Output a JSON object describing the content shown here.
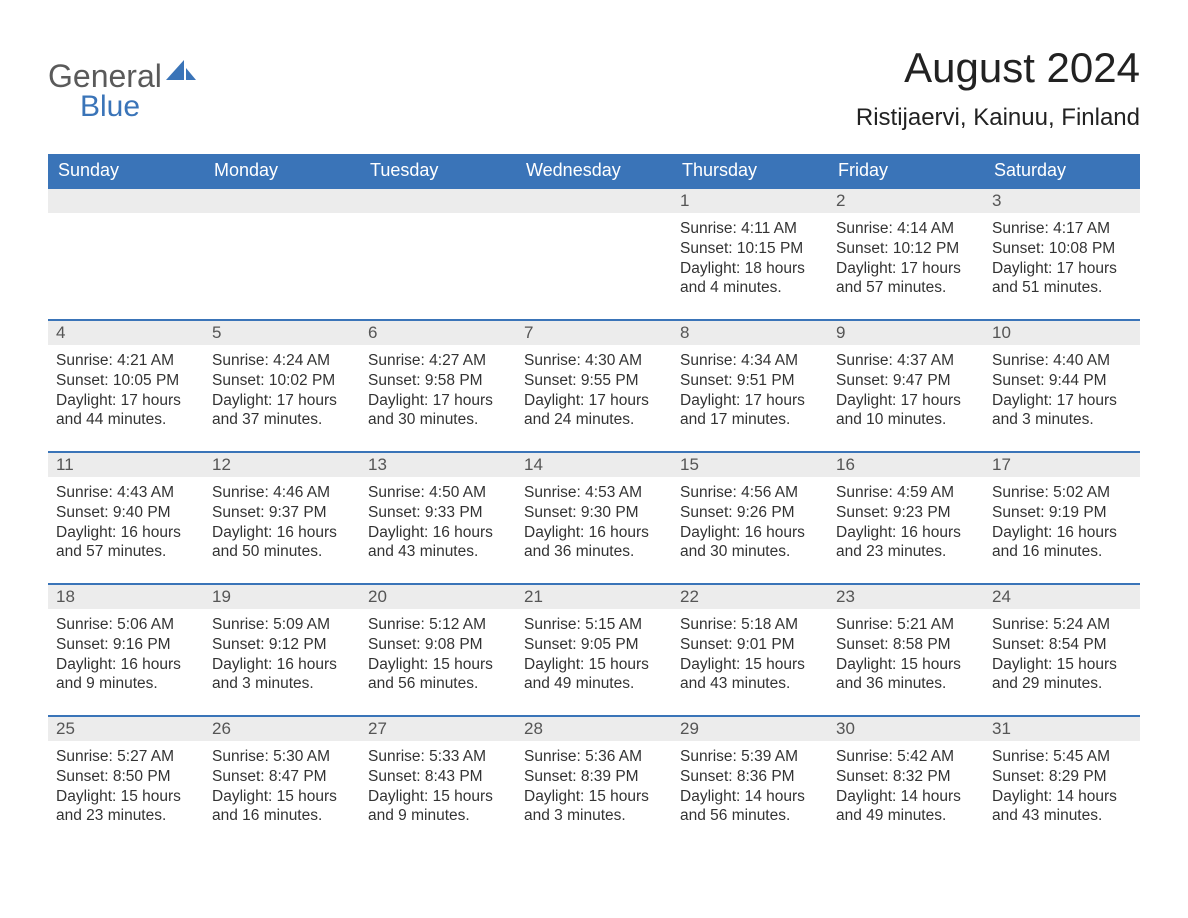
{
  "logo": {
    "word1": "General",
    "word2": "Blue",
    "accent_color": "#3a74b8"
  },
  "title": "August 2024",
  "location": "Ristijaervi, Kainuu, Finland",
  "colors": {
    "header_bg": "#3a74b8",
    "header_text": "#ffffff",
    "daybar_bg": "#ececec",
    "daybar_border": "#3a74b8",
    "body_text": "#333333",
    "page_bg": "#ffffff"
  },
  "day_headers": [
    "Sunday",
    "Monday",
    "Tuesday",
    "Wednesday",
    "Thursday",
    "Friday",
    "Saturday"
  ],
  "weeks": [
    [
      null,
      null,
      null,
      null,
      {
        "n": "1",
        "sunrise": "4:11 AM",
        "sunset": "10:15 PM",
        "daylight": "18 hours and 4 minutes."
      },
      {
        "n": "2",
        "sunrise": "4:14 AM",
        "sunset": "10:12 PM",
        "daylight": "17 hours and 57 minutes."
      },
      {
        "n": "3",
        "sunrise": "4:17 AM",
        "sunset": "10:08 PM",
        "daylight": "17 hours and 51 minutes."
      }
    ],
    [
      {
        "n": "4",
        "sunrise": "4:21 AM",
        "sunset": "10:05 PM",
        "daylight": "17 hours and 44 minutes."
      },
      {
        "n": "5",
        "sunrise": "4:24 AM",
        "sunset": "10:02 PM",
        "daylight": "17 hours and 37 minutes."
      },
      {
        "n": "6",
        "sunrise": "4:27 AM",
        "sunset": "9:58 PM",
        "daylight": "17 hours and 30 minutes."
      },
      {
        "n": "7",
        "sunrise": "4:30 AM",
        "sunset": "9:55 PM",
        "daylight": "17 hours and 24 minutes."
      },
      {
        "n": "8",
        "sunrise": "4:34 AM",
        "sunset": "9:51 PM",
        "daylight": "17 hours and 17 minutes."
      },
      {
        "n": "9",
        "sunrise": "4:37 AM",
        "sunset": "9:47 PM",
        "daylight": "17 hours and 10 minutes."
      },
      {
        "n": "10",
        "sunrise": "4:40 AM",
        "sunset": "9:44 PM",
        "daylight": "17 hours and 3 minutes."
      }
    ],
    [
      {
        "n": "11",
        "sunrise": "4:43 AM",
        "sunset": "9:40 PM",
        "daylight": "16 hours and 57 minutes."
      },
      {
        "n": "12",
        "sunrise": "4:46 AM",
        "sunset": "9:37 PM",
        "daylight": "16 hours and 50 minutes."
      },
      {
        "n": "13",
        "sunrise": "4:50 AM",
        "sunset": "9:33 PM",
        "daylight": "16 hours and 43 minutes."
      },
      {
        "n": "14",
        "sunrise": "4:53 AM",
        "sunset": "9:30 PM",
        "daylight": "16 hours and 36 minutes."
      },
      {
        "n": "15",
        "sunrise": "4:56 AM",
        "sunset": "9:26 PM",
        "daylight": "16 hours and 30 minutes."
      },
      {
        "n": "16",
        "sunrise": "4:59 AM",
        "sunset": "9:23 PM",
        "daylight": "16 hours and 23 minutes."
      },
      {
        "n": "17",
        "sunrise": "5:02 AM",
        "sunset": "9:19 PM",
        "daylight": "16 hours and 16 minutes."
      }
    ],
    [
      {
        "n": "18",
        "sunrise": "5:06 AM",
        "sunset": "9:16 PM",
        "daylight": "16 hours and 9 minutes."
      },
      {
        "n": "19",
        "sunrise": "5:09 AM",
        "sunset": "9:12 PM",
        "daylight": "16 hours and 3 minutes."
      },
      {
        "n": "20",
        "sunrise": "5:12 AM",
        "sunset": "9:08 PM",
        "daylight": "15 hours and 56 minutes."
      },
      {
        "n": "21",
        "sunrise": "5:15 AM",
        "sunset": "9:05 PM",
        "daylight": "15 hours and 49 minutes."
      },
      {
        "n": "22",
        "sunrise": "5:18 AM",
        "sunset": "9:01 PM",
        "daylight": "15 hours and 43 minutes."
      },
      {
        "n": "23",
        "sunrise": "5:21 AM",
        "sunset": "8:58 PM",
        "daylight": "15 hours and 36 minutes."
      },
      {
        "n": "24",
        "sunrise": "5:24 AM",
        "sunset": "8:54 PM",
        "daylight": "15 hours and 29 minutes."
      }
    ],
    [
      {
        "n": "25",
        "sunrise": "5:27 AM",
        "sunset": "8:50 PM",
        "daylight": "15 hours and 23 minutes."
      },
      {
        "n": "26",
        "sunrise": "5:30 AM",
        "sunset": "8:47 PM",
        "daylight": "15 hours and 16 minutes."
      },
      {
        "n": "27",
        "sunrise": "5:33 AM",
        "sunset": "8:43 PM",
        "daylight": "15 hours and 9 minutes."
      },
      {
        "n": "28",
        "sunrise": "5:36 AM",
        "sunset": "8:39 PM",
        "daylight": "15 hours and 3 minutes."
      },
      {
        "n": "29",
        "sunrise": "5:39 AM",
        "sunset": "8:36 PM",
        "daylight": "14 hours and 56 minutes."
      },
      {
        "n": "30",
        "sunrise": "5:42 AM",
        "sunset": "8:32 PM",
        "daylight": "14 hours and 49 minutes."
      },
      {
        "n": "31",
        "sunrise": "5:45 AM",
        "sunset": "8:29 PM",
        "daylight": "14 hours and 43 minutes."
      }
    ]
  ],
  "labels": {
    "sunrise": "Sunrise:",
    "sunset": "Sunset:",
    "daylight": "Daylight:"
  }
}
